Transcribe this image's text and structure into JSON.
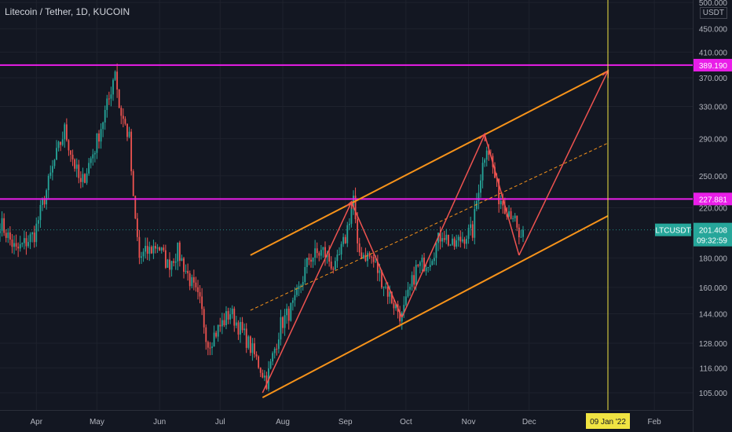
{
  "header": {
    "title": "Litecoin / Tether, 1D, KUCOIN"
  },
  "currency_badge": "USDT",
  "colors": {
    "background": "#131722",
    "up_candle": "#26a69a",
    "down_candle": "#ef5350",
    "level_line": "#e91ee8",
    "channel": "#f7931a",
    "path": "#ef5350",
    "date_marker": "#f0e442",
    "axis_text": "#b2b5be"
  },
  "chart_data": {
    "type": "candlestick",
    "symbol": "LTCUSDT",
    "timeframe": "1D",
    "exchange": "KUCOIN",
    "y_scale": "log",
    "ylim": [
      98,
      505
    ],
    "xlim": [
      "2021-03-14",
      "2022-02-20"
    ],
    "y_ticks": [
      "500.000",
      "450.000",
      "410.000",
      "370.000",
      "330.000",
      "290.000",
      "250.000",
      "220.000",
      "180.000",
      "160.000",
      "144.000",
      "128.000",
      "116.000",
      "105.000"
    ],
    "x_ticks": [
      {
        "date": "2021-04-01",
        "label": "Apr"
      },
      {
        "date": "2021-05-01",
        "label": "May"
      },
      {
        "date": "2021-06-01",
        "label": "Jun"
      },
      {
        "date": "2021-07-01",
        "label": "Jul"
      },
      {
        "date": "2021-08-01",
        "label": "Aug"
      },
      {
        "date": "2021-09-01",
        "label": "Sep"
      },
      {
        "date": "2021-10-01",
        "label": "Oct"
      },
      {
        "date": "2021-11-01",
        "label": "Nov"
      },
      {
        "date": "2021-12-01",
        "label": "Dec"
      },
      {
        "date": "2022-02-01",
        "label": "Feb"
      }
    ],
    "price_path": [
      [
        "2021-03-14",
        208
      ],
      [
        "2021-03-22",
        185
      ],
      [
        "2021-03-31",
        198
      ],
      [
        "2021-04-10",
        265
      ],
      [
        "2021-04-15",
        300
      ],
      [
        "2021-04-23",
        240
      ],
      [
        "2021-04-30",
        280
      ],
      [
        "2021-05-07",
        340
      ],
      [
        "2021-05-10",
        385
      ],
      [
        "2021-05-12",
        330
      ],
      [
        "2021-05-17",
        290
      ],
      [
        "2021-05-19",
        225
      ],
      [
        "2021-05-22",
        180
      ],
      [
        "2021-05-31",
        190
      ],
      [
        "2021-06-05",
        175
      ],
      [
        "2021-06-10",
        185
      ],
      [
        "2021-06-21",
        150
      ],
      [
        "2021-06-25",
        128
      ],
      [
        "2021-07-06",
        145
      ],
      [
        "2021-07-14",
        130
      ],
      [
        "2021-07-20",
        118
      ],
      [
        "2021-07-24",
        110
      ],
      [
        "2021-07-31",
        138
      ],
      [
        "2021-08-07",
        150
      ],
      [
        "2021-08-14",
        180
      ],
      [
        "2021-08-21",
        185
      ],
      [
        "2021-08-27",
        172
      ],
      [
        "2021-09-01",
        195
      ],
      [
        "2021-09-05",
        230
      ],
      [
        "2021-09-07",
        185
      ],
      [
        "2021-09-14",
        180
      ],
      [
        "2021-09-21",
        160
      ],
      [
        "2021-09-25",
        150
      ],
      [
        "2021-09-29",
        142
      ],
      [
        "2021-10-06",
        172
      ],
      [
        "2021-10-13",
        180
      ],
      [
        "2021-10-19",
        200
      ],
      [
        "2021-10-24",
        188
      ],
      [
        "2021-10-31",
        198
      ],
      [
        "2021-11-03",
        200
      ],
      [
        "2021-11-06",
        240
      ],
      [
        "2021-11-10",
        285
      ],
      [
        "2021-11-12",
        268
      ],
      [
        "2021-11-16",
        230
      ],
      [
        "2021-11-20",
        220
      ],
      [
        "2021-11-23",
        215
      ],
      [
        "2021-11-26",
        192
      ],
      [
        "2021-11-28",
        201.408
      ]
    ],
    "horizontal_levels": [
      {
        "price": 389.19,
        "label": "389.190"
      },
      {
        "price": 227.881,
        "label": "227.881"
      }
    ],
    "current_price": {
      "symbol": "LTCUSDT",
      "price": 201.408,
      "label": "201.408",
      "countdown": "09:32:59"
    },
    "channel": {
      "upper": [
        [
          "2021-07-16",
          182
        ],
        [
          "2022-01-09",
          380
        ]
      ],
      "middle": [
        [
          "2021-07-16",
          146
        ],
        [
          "2022-01-09",
          285
        ]
      ],
      "lower": [
        [
          "2021-07-22",
          103
        ],
        [
          "2022-01-09",
          213
        ]
      ]
    },
    "projection_path": [
      [
        "2021-07-22",
        105
      ],
      [
        "2021-09-04",
        225
      ],
      [
        "2021-09-29",
        142
      ],
      [
        "2021-11-09",
        295
      ],
      [
        "2021-11-26",
        182
      ],
      [
        "2022-01-09",
        380
      ]
    ],
    "vertical_marker": {
      "date": "2022-01-09",
      "label": "09 Jan '22"
    }
  }
}
